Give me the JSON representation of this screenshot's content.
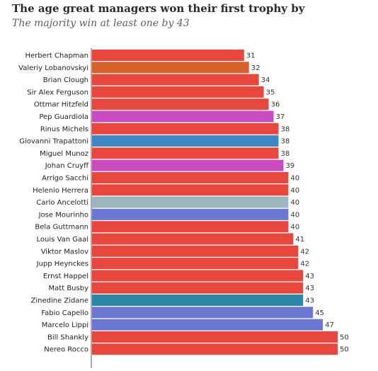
{
  "chart_data": {
    "type": "bar",
    "title": "The age great managers won their first trophy by",
    "subtitle": "The majority win at least one by 43",
    "xlim": [
      0,
      50
    ],
    "categories": [
      "Herbert Chapman",
      "Valeriy Lobanovskyi",
      "Brian Clough",
      "Sir Alex Ferguson",
      "Ottmar Hitzfeld",
      "Pep Guardiola",
      "Rinus Michels",
      "Giovanni Trapattoni",
      "Miguel Munoz",
      "Johan Cruyff",
      "Arrigo Sacchi",
      "Helenio Herrera",
      "Carlo Ancelotti",
      "Jose Mourinho",
      "Bela Guttmann",
      "Louis Van Gaal",
      "Viktor Maslov",
      "Jupp Heynckes",
      "Ernst Happel",
      "Matt Busby",
      "Zinedine Zidane",
      "Fabio Capello",
      "Marcelo Lippi",
      "Bill Shankly",
      "Nereo Rocco"
    ],
    "values": [
      31,
      32,
      34,
      35,
      36,
      37,
      38,
      38,
      38,
      39,
      40,
      40,
      40,
      40,
      40,
      41,
      42,
      42,
      43,
      43,
      43,
      45,
      47,
      50,
      50
    ],
    "colors": [
      "#e8473d",
      "#d9602b",
      "#e8473d",
      "#e8473d",
      "#e8473d",
      "#c94bbf",
      "#e8473d",
      "#3f87c4",
      "#e8473d",
      "#c94bbf",
      "#e8473d",
      "#e8473d",
      "#9db5bd",
      "#6a78d1",
      "#e8473d",
      "#e8473d",
      "#e8473d",
      "#e8473d",
      "#e8473d",
      "#e8473d",
      "#2f87a8",
      "#6a78d1",
      "#6a78d1",
      "#e8473d",
      "#e8473d"
    ]
  }
}
